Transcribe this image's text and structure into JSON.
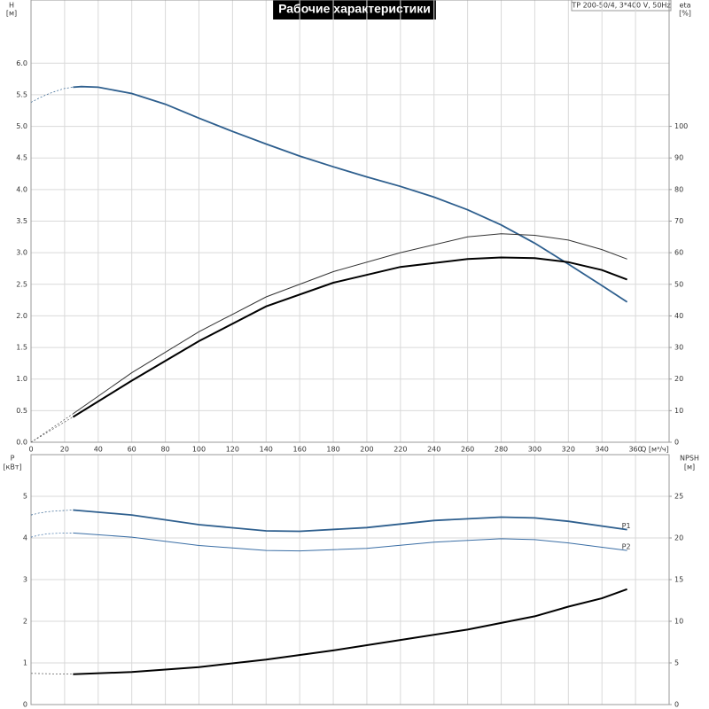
{
  "chart_data": [
    {
      "type": "line",
      "title": "Рабочие характеристики",
      "annotation": "TP 200-50/4, 3*400 V, 50Hz",
      "xlabel": "Q [м³/ч]",
      "ylabel": "H",
      "ylabel_unit": "[м]",
      "y2label": "eta",
      "y2label_unit": "[%]",
      "xlim": [
        0,
        380
      ],
      "xticks": [
        0,
        20,
        40,
        60,
        80,
        100,
        120,
        140,
        160,
        180,
        200,
        220,
        240,
        260,
        280,
        300,
        320,
        340,
        360
      ],
      "ylim": [
        0,
        7
      ],
      "yticks": [
        {
          "value": 0,
          "label": "0.0"
        },
        {
          "value": 0.5,
          "label": "0.5"
        },
        {
          "value": 1,
          "label": "1.0"
        },
        {
          "value": 1.5,
          "label": "1.5"
        },
        {
          "value": 2,
          "label": "2.0"
        },
        {
          "value": 2.5,
          "label": "2.5"
        },
        {
          "value": 3,
          "label": "3.0"
        },
        {
          "value": 3.5,
          "label": "3.5"
        },
        {
          "value": 4,
          "label": "4.0"
        },
        {
          "value": 4.5,
          "label": "4.5"
        },
        {
          "value": 5,
          "label": "5.0"
        },
        {
          "value": 5.5,
          "label": "5.5"
        },
        {
          "value": 6,
          "label": "6.0"
        }
      ],
      "y2lim": [
        0,
        140
      ],
      "y2ticks": [
        0,
        10,
        20,
        30,
        40,
        50,
        60,
        70,
        80,
        90,
        100
      ],
      "grid": true,
      "series": [
        {
          "color": "#2e5f8e",
          "width": 0.7,
          "dashed": true,
          "x": [
            0,
            5,
            10,
            15,
            20,
            25
          ],
          "values": [
            5.38,
            5.45,
            5.51,
            5.56,
            5.6,
            5.62
          ]
        },
        {
          "color": "#2e5f8e",
          "width": 1.8,
          "dashed": false,
          "x": [
            25,
            30,
            40,
            60,
            80,
            100,
            120,
            140,
            160,
            180,
            200,
            220,
            240,
            260,
            280,
            300,
            320,
            340,
            355
          ],
          "values": [
            5.62,
            5.63,
            5.62,
            5.52,
            5.35,
            5.13,
            4.92,
            4.72,
            4.53,
            4.36,
            4.2,
            4.05,
            3.88,
            3.68,
            3.44,
            3.15,
            2.82,
            2.48,
            2.22
          ]
        },
        {
          "color": "#555",
          "width": 0.7,
          "dashed": true,
          "axis": "y2",
          "x": [
            0,
            5,
            10,
            15,
            20,
            25
          ],
          "values": [
            0,
            1.8,
            3.6,
            5.4,
            7.2,
            9
          ]
        },
        {
          "color": "#333",
          "width": 1,
          "dashed": false,
          "axis": "y2",
          "x": [
            25,
            60,
            100,
            140,
            180,
            220,
            260,
            280,
            300,
            320,
            340,
            355
          ],
          "values": [
            9,
            22,
            35,
            46,
            54,
            60,
            65,
            66,
            65.5,
            64,
            61,
            58
          ]
        },
        {
          "color": "#555",
          "width": 0.7,
          "dashed": true,
          "axis": "y2",
          "x": [
            0,
            5,
            10,
            15,
            20,
            25
          ],
          "values": [
            0,
            1.6,
            3.2,
            4.8,
            6.4,
            8
          ]
        },
        {
          "color": "#000",
          "width": 2,
          "dashed": false,
          "axis": "y2",
          "x": [
            25,
            60,
            100,
            140,
            180,
            220,
            260,
            280,
            300,
            320,
            340,
            355
          ],
          "values": [
            8,
            19.5,
            32,
            43,
            50.5,
            55.5,
            58,
            58.5,
            58.3,
            57,
            54.5,
            51.5
          ]
        }
      ]
    },
    {
      "type": "line",
      "ylabel": "P",
      "ylabel_unit": "[кВт]",
      "y2label": "NPSH",
      "y2label_unit": "[м]",
      "xlim": [
        0,
        380
      ],
      "ylim": [
        0,
        6
      ],
      "yticks": [
        0,
        1,
        2,
        3,
        4,
        5
      ],
      "y2lim": [
        0,
        30
      ],
      "y2ticks": [
        0,
        5,
        10,
        15,
        20,
        25
      ],
      "grid": true,
      "series": [
        {
          "color": "#2e5f8e",
          "width": 0.7,
          "dashed": true,
          "x": [
            0,
            5,
            10,
            15,
            20,
            25
          ],
          "values": [
            4.55,
            4.6,
            4.63,
            4.65,
            4.66,
            4.67
          ]
        },
        {
          "name": "P1",
          "color": "#2e5f8e",
          "width": 1.8,
          "dashed": false,
          "x": [
            25,
            60,
            100,
            140,
            160,
            200,
            240,
            280,
            300,
            320,
            355
          ],
          "values": [
            4.67,
            4.55,
            4.32,
            4.17,
            4.16,
            4.25,
            4.42,
            4.5,
            4.48,
            4.4,
            4.2
          ]
        },
        {
          "color": "#3a6ea5",
          "width": 0.7,
          "dashed": true,
          "x": [
            0,
            5,
            10,
            15,
            20,
            25
          ],
          "values": [
            4.02,
            4.07,
            4.1,
            4.11,
            4.12,
            4.12
          ]
        },
        {
          "name": "P2",
          "color": "#3a6ea5",
          "width": 1,
          "dashed": false,
          "x": [
            25,
            60,
            100,
            140,
            160,
            200,
            240,
            280,
            300,
            320,
            355
          ],
          "values": [
            4.12,
            4.02,
            3.82,
            3.7,
            3.69,
            3.75,
            3.9,
            3.98,
            3.96,
            3.88,
            3.7
          ]
        },
        {
          "color": "#555",
          "width": 0.7,
          "dashed": true,
          "axis": "y2",
          "x": [
            0,
            5,
            10,
            15,
            20,
            25
          ],
          "values": [
            3.75,
            3.72,
            3.7,
            3.68,
            3.66,
            3.65
          ]
        },
        {
          "color": "#000",
          "width": 2,
          "dashed": false,
          "axis": "y2",
          "x": [
            25,
            60,
            100,
            140,
            180,
            220,
            260,
            300,
            320,
            340,
            355
          ],
          "values": [
            3.65,
            3.9,
            4.5,
            5.4,
            6.5,
            7.75,
            9,
            10.6,
            11.75,
            12.75,
            13.85
          ]
        }
      ]
    }
  ]
}
